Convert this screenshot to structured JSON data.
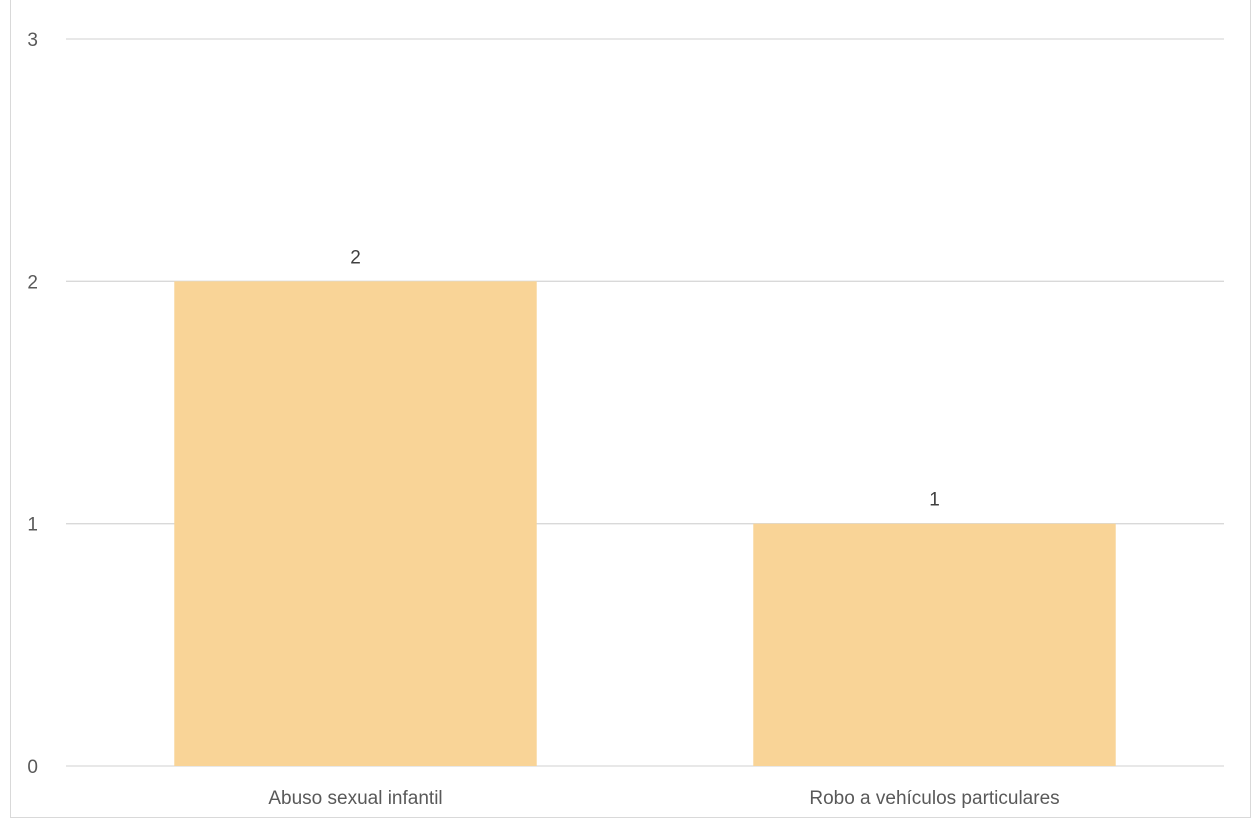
{
  "chart_data": {
    "type": "bar",
    "title": "",
    "xlabel": "",
    "ylabel": "",
    "categories": [
      "Abuso sexual infantil",
      "Robo a vehículos particulares"
    ],
    "values": [
      2,
      1
    ],
    "ylim": [
      0,
      3
    ],
    "yticks": [
      0,
      1,
      2,
      3
    ],
    "grid": true,
    "data_labels": true,
    "colors": {
      "bar": "#f9d497",
      "grid": "#d9d9d9",
      "axis": "#d9d9d9"
    }
  }
}
